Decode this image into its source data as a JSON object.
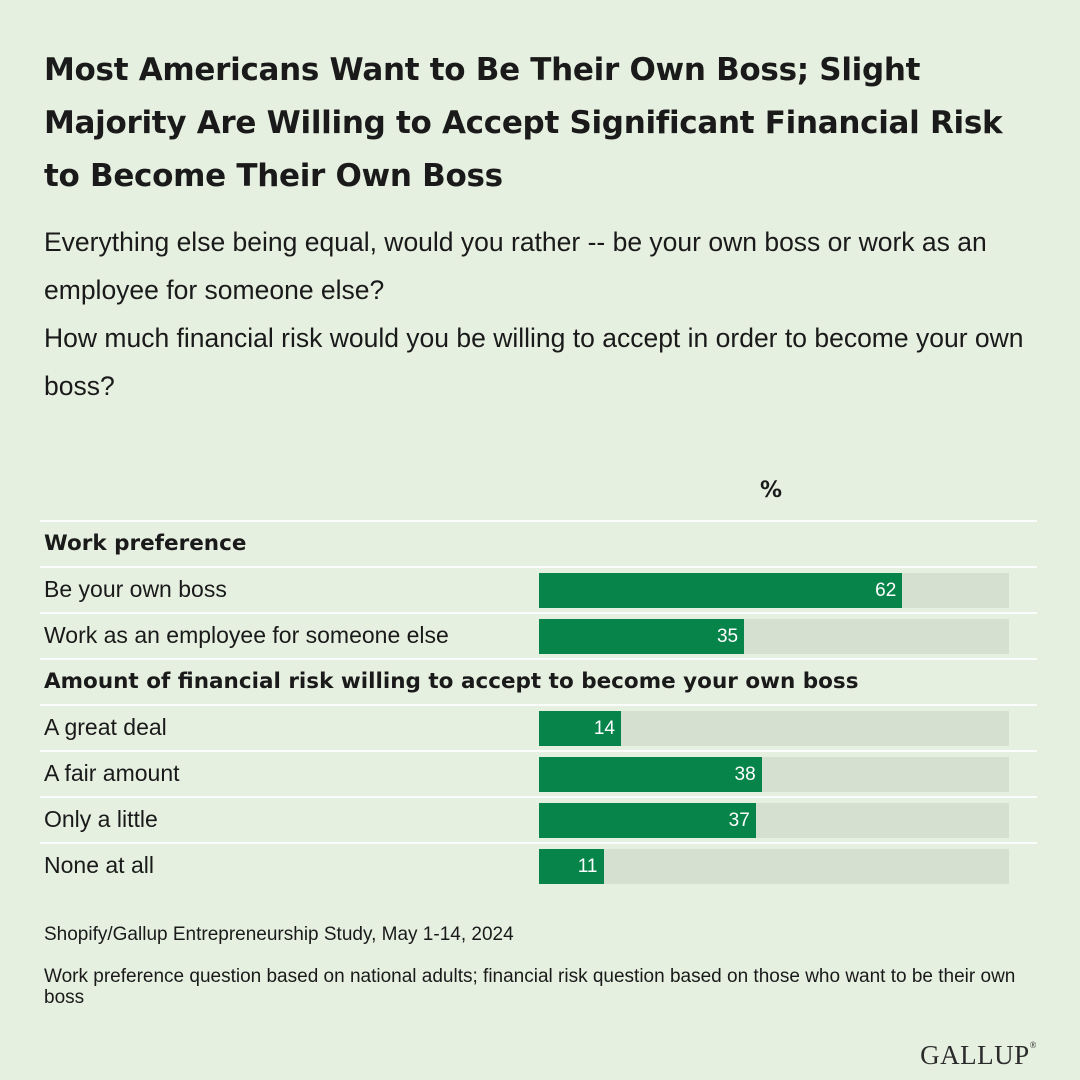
{
  "title": "Most Americans Want to Be Their Own Boss; Slight Majority Are Willing to Accept Significant Financial Risk to Become Their Own Boss",
  "subtitle": {
    "question1": "Everything else being equal, would you rather -- be your own boss or work as an employee for someone else?",
    "question2": "How much financial risk would you be willing to accept in order to become your own boss?"
  },
  "percent_header": "%",
  "colors": {
    "background": "#e6f0e1",
    "bar": "#06844a",
    "track": "#d5e0d1"
  },
  "chart_data": {
    "type": "bar",
    "orientation": "horizontal",
    "xlim": [
      0,
      100
    ],
    "groups": [
      {
        "label": "Work preference",
        "categories": [
          "Be your own boss",
          "Work as an employee for someone else"
        ],
        "values": [
          62,
          35
        ]
      },
      {
        "label": "Amount of financial risk willing to accept to become your own boss",
        "categories": [
          "A great deal",
          "A fair amount",
          "Only a little",
          "None at all"
        ],
        "values": [
          14,
          38,
          37,
          11
        ]
      }
    ]
  },
  "source": "Shopify/Gallup Entrepreneurship Study, May 1-14, 2024",
  "note": "Work preference question based on national adults; financial risk question based on those who want to be their own boss",
  "logo": "GALLUP"
}
